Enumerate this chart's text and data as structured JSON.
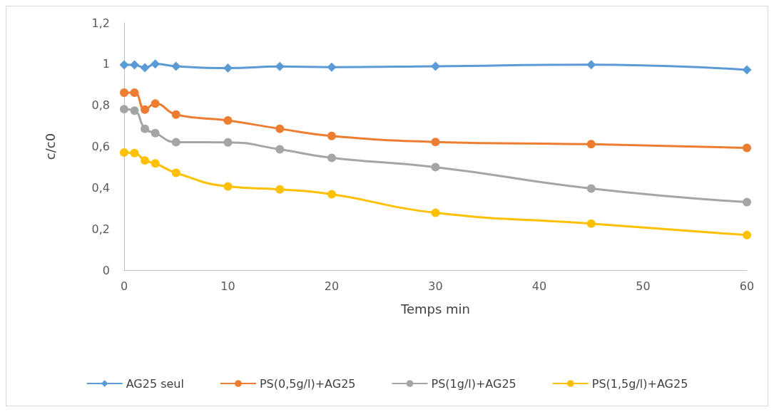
{
  "chart_data": {
    "type": "line",
    "xlabel": "Temps min",
    "ylabel": "c/c0",
    "x": [
      0,
      1,
      2,
      3,
      5,
      10,
      15,
      20,
      30,
      45,
      60
    ],
    "series": [
      {
        "name": "AG25 seul",
        "color": "#5b9bd5",
        "marker": "diamond",
        "values": [
          0.996,
          0.996,
          0.982,
          1.0,
          0.989,
          0.98,
          0.988,
          0.985,
          0.989,
          0.997,
          0.972
        ]
      },
      {
        "name": "PS(0,5g/l)+AG25",
        "color": "#ed7d31",
        "marker": "circle",
        "values": [
          0.861,
          0.861,
          0.779,
          0.808,
          0.755,
          0.726,
          0.686,
          0.651,
          0.622,
          0.611,
          0.593
        ]
      },
      {
        "name": "PS(1g/l)+AG25",
        "color": "#a5a5a5",
        "marker": "circle",
        "values": [
          0.781,
          0.774,
          0.686,
          0.665,
          0.621,
          0.62,
          0.586,
          0.545,
          0.5,
          0.396,
          0.33
        ]
      },
      {
        "name": "PS(1,5g/l)+AG25",
        "color": "#ffc000",
        "marker": "circle",
        "values": [
          0.571,
          0.568,
          0.532,
          0.518,
          0.472,
          0.406,
          0.392,
          0.368,
          0.278,
          0.226,
          0.17
        ]
      }
    ],
    "xlim": [
      0,
      60
    ],
    "xticks": [
      0,
      10,
      20,
      30,
      40,
      50,
      60
    ],
    "ylim": [
      0,
      1.2
    ],
    "yticks": [
      {
        "value": 0,
        "label": "0"
      },
      {
        "value": 0.2,
        "label": "0,2"
      },
      {
        "value": 0.4,
        "label": "0,4"
      },
      {
        "value": 0.6,
        "label": "0,6"
      },
      {
        "value": 0.8,
        "label": "0,8"
      },
      {
        "value": 1,
        "label": "1"
      },
      {
        "value": 1.2,
        "label": "1,2"
      }
    ],
    "grid": false,
    "legend": "bottom",
    "line_style": "solid"
  }
}
